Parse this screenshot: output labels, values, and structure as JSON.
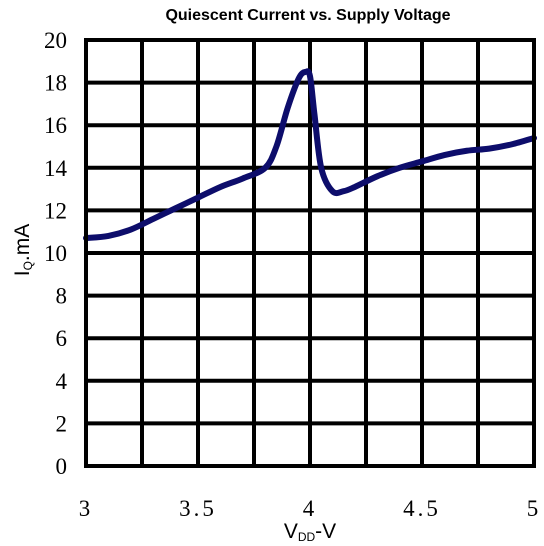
{
  "chart_data": {
    "type": "line",
    "title": "Quiescent Current vs. Supply Voltage",
    "xlabel": {
      "main": "V",
      "sub": "DD",
      "suffix": "-V"
    },
    "ylabel": {
      "main": "I",
      "sub": "Q",
      "suffix": ".mA"
    },
    "xlim": [
      3,
      5
    ],
    "ylim": [
      0,
      20
    ],
    "x_ticks": [
      "3",
      "3.5",
      "4",
      "4.5",
      "5"
    ],
    "y_ticks": [
      "0",
      "2",
      "4",
      "6",
      "8",
      "10",
      "12",
      "14",
      "16",
      "18",
      "20"
    ],
    "grid": true,
    "line_color": "#0d0d6b",
    "series": [
      {
        "x": [
          3.0,
          3.1,
          3.2,
          3.3,
          3.4,
          3.5,
          3.6,
          3.7,
          3.8,
          3.85,
          3.9,
          3.95,
          3.98,
          4.0,
          4.02,
          4.05,
          4.1,
          4.15,
          4.2,
          4.3,
          4.4,
          4.5,
          4.6,
          4.7,
          4.8,
          4.9,
          5.0
        ],
        "y": [
          10.7,
          10.8,
          11.1,
          11.6,
          12.1,
          12.6,
          13.1,
          13.5,
          14.0,
          15.0,
          16.8,
          18.2,
          18.5,
          18.3,
          16.5,
          14.0,
          12.9,
          12.9,
          13.1,
          13.6,
          14.0,
          14.3,
          14.6,
          14.8,
          14.9,
          15.1,
          15.4
        ]
      }
    ]
  }
}
